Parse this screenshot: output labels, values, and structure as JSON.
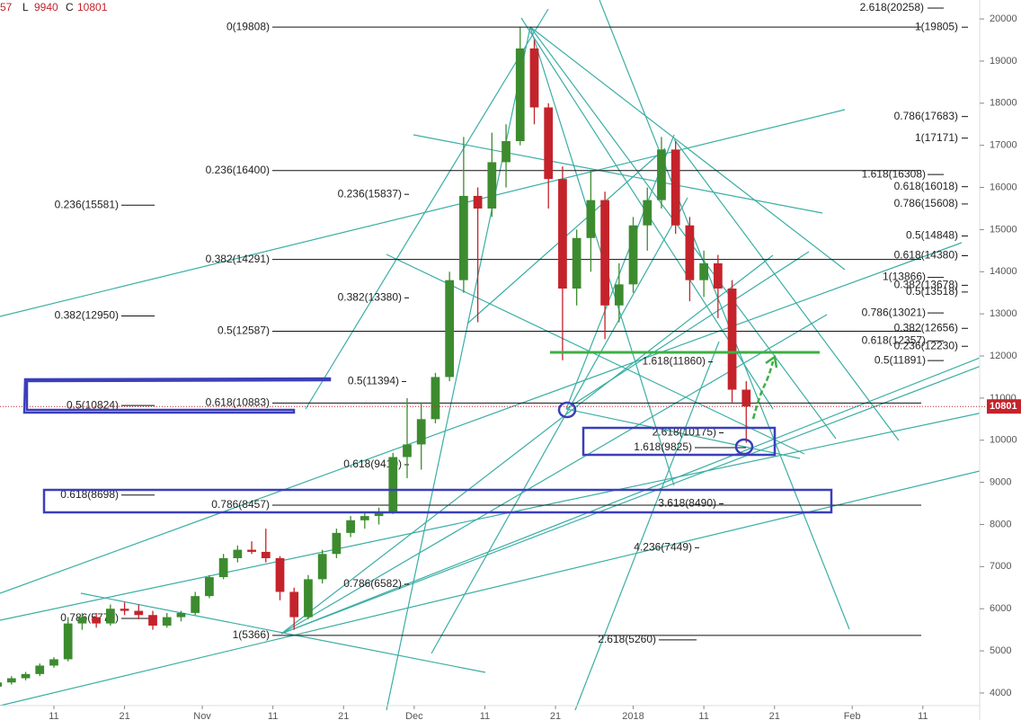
{
  "chart_data": {
    "type": "candlestick",
    "header": {
      "high_fragment": "57",
      "low_label": "L",
      "low": 9940,
      "close_label": "C",
      "close": 10801
    },
    "x": [
      2,
      4,
      6,
      8,
      10,
      12,
      14,
      16,
      18,
      20,
      22,
      24,
      26,
      28,
      30,
      32,
      34,
      36,
      38,
      40,
      42,
      44,
      46,
      48,
      50,
      52,
      54,
      56,
      58,
      60,
      62,
      64,
      66,
      68,
      70,
      72,
      74,
      76,
      78,
      80,
      82,
      84,
      86,
      88,
      90,
      92,
      94,
      96,
      98,
      100,
      102,
      104,
      106,
      108
    ],
    "open": [
      4150,
      4250,
      4350,
      4450,
      4650,
      4800,
      5650,
      5800,
      5650,
      6000,
      5950,
      5850,
      5600,
      5800,
      5900,
      6300,
      6750,
      7200,
      7400,
      7350,
      7200,
      6400,
      5800,
      6700,
      7300,
      7800,
      8100,
      8200,
      8300,
      9600,
      9900,
      10500,
      11500,
      13800,
      15800,
      15500,
      16600,
      17100,
      19300,
      17900,
      16200,
      13600,
      14800,
      15700,
      13200,
      13700,
      15100,
      15700,
      16900,
      15100,
      13800,
      14200,
      13600,
      11200
    ],
    "high": [
      4300,
      4400,
      4500,
      4700,
      4850,
      5800,
      5900,
      5900,
      6100,
      6150,
      6100,
      5950,
      5900,
      5950,
      6400,
      6800,
      7300,
      7500,
      7600,
      7900,
      7250,
      6500,
      6800,
      7400,
      7900,
      8200,
      8300,
      8400,
      9700,
      11000,
      10900,
      11600,
      14000,
      17200,
      16000,
      17300,
      17500,
      19800,
      19500,
      18000,
      16500,
      15000,
      16400,
      15900,
      14200,
      15300,
      16000,
      17200,
      17100,
      15300,
      14500,
      14400,
      13800,
      11400
    ],
    "low": [
      4100,
      4200,
      4300,
      4400,
      4600,
      4750,
      5500,
      5550,
      5600,
      5850,
      5750,
      5500,
      5550,
      5700,
      5850,
      6250,
      6700,
      7100,
      7300,
      7100,
      6200,
      5500,
      5750,
      6600,
      7200,
      7700,
      7900,
      8000,
      8250,
      9100,
      9300,
      10400,
      11400,
      13500,
      12800,
      15300,
      16000,
      17000,
      17500,
      15500,
      11900,
      13200,
      14000,
      12400,
      12800,
      13500,
      14500,
      15500,
      14900,
      13300,
      13400,
      12900,
      10900,
      9940
    ],
    "close": [
      4250,
      4350,
      4450,
      4650,
      4800,
      5650,
      5800,
      5650,
      6000,
      5950,
      5850,
      5600,
      5800,
      5900,
      6300,
      6750,
      7200,
      7400,
      7350,
      7200,
      6400,
      5800,
      6700,
      7300,
      7800,
      8100,
      8200,
      8300,
      9600,
      9900,
      10500,
      11500,
      13800,
      15800,
      15500,
      16600,
      17100,
      19300,
      17900,
      16200,
      13600,
      14800,
      15700,
      13200,
      13700,
      15100,
      15700,
      16900,
      15100,
      13800,
      14200,
      13600,
      11200,
      10801
    ],
    "up_color": "#3d8b2f",
    "down_color": "#c4232b",
    "xlim": [
      2.37,
      141.04
    ],
    "xticks": [
      {
        "value": 10,
        "label": "11"
      },
      {
        "value": 20,
        "label": "21"
      },
      {
        "value": 31,
        "label": "Nov"
      },
      {
        "value": 41,
        "label": "11"
      },
      {
        "value": 51,
        "label": "21"
      },
      {
        "value": 61,
        "label": "Dec"
      },
      {
        "value": 71,
        "label": "11"
      },
      {
        "value": 81,
        "label": "21"
      },
      {
        "value": 92,
        "label": "2018"
      },
      {
        "value": 102,
        "label": "11"
      },
      {
        "value": 112,
        "label": "21"
      },
      {
        "value": 123,
        "label": "Feb"
      },
      {
        "value": 133,
        "label": "11"
      }
    ],
    "ylim": [
      3700,
      20450
    ],
    "yticks": [
      4000,
      5000,
      6000,
      7000,
      8000,
      9000,
      10000,
      11000,
      12000,
      13000,
      14000,
      15000,
      16000,
      17000,
      18000,
      19000,
      20000
    ],
    "annotations": [
      {
        "label": "2.618(20258)",
        "level": 20258
      },
      {
        "label": "0(19808)",
        "level": 19808
      },
      {
        "label": "1(19805)",
        "level": 19805
      },
      {
        "label": "0.786(17683)",
        "level": 17683
      },
      {
        "label": "1(17171)",
        "level": 17171
      },
      {
        "label": "0.236(16400)",
        "level": 16400
      },
      {
        "label": "1.618(16308)",
        "level": 16308
      },
      {
        "label": "0.618(16018)",
        "level": 16018
      },
      {
        "label": "0.236(15837)",
        "level": 15837
      },
      {
        "label": "0.786(15608)",
        "level": 15608
      },
      {
        "label": "0.236(15581)",
        "level": 15581
      },
      {
        "label": "0.5(14848)",
        "level": 14848
      },
      {
        "label": "0.618(14380)",
        "level": 14380
      },
      {
        "label": "0.382(14291)",
        "level": 14291
      },
      {
        "label": "1(13866)",
        "level": 13866
      },
      {
        "label": "0.382(13678)",
        "level": 13678
      },
      {
        "label": "0.5(13518)",
        "level": 13518
      },
      {
        "label": "0.382(13380)",
        "level": 13380
      },
      {
        "label": "0.786(13021)",
        "level": 13021
      },
      {
        "label": "0.382(12950)",
        "level": 12950
      },
      {
        "label": "0.382(12656)",
        "level": 12656
      },
      {
        "label": "0.5(12587)",
        "level": 12587
      },
      {
        "label": "0.618(12357)",
        "level": 12357
      },
      {
        "label": "0.236(12230)",
        "level": 12230
      },
      {
        "label": "0.5(11891)",
        "level": 11891
      },
      {
        "label": "1.618(11860)",
        "level": 11860
      },
      {
        "label": "0.5(11394)",
        "level": 11394
      },
      {
        "label": "0.618(10883)",
        "level": 10883
      },
      {
        "label": "0.5(10824)",
        "level": 10824
      },
      {
        "label": "2.618(10175)",
        "level": 10175
      },
      {
        "label": "1.618(9825)",
        "level": 9825
      },
      {
        "label": "0.618(9419)",
        "level": 9419
      },
      {
        "label": "0.618(8698)",
        "level": 8698
      },
      {
        "label": "3.618(8490)",
        "level": 8490
      },
      {
        "label": "0.786(8457)",
        "level": 8457
      },
      {
        "label": "4.236(7449)",
        "level": 7449
      },
      {
        "label": "0.786(6582)",
        "level": 6582
      },
      {
        "label": "0.786(5770)",
        "level": 5770
      },
      {
        "label": "1(5366)",
        "level": 5366
      },
      {
        "label": "2.618(5260)",
        "level": 5260
      }
    ]
  }
}
